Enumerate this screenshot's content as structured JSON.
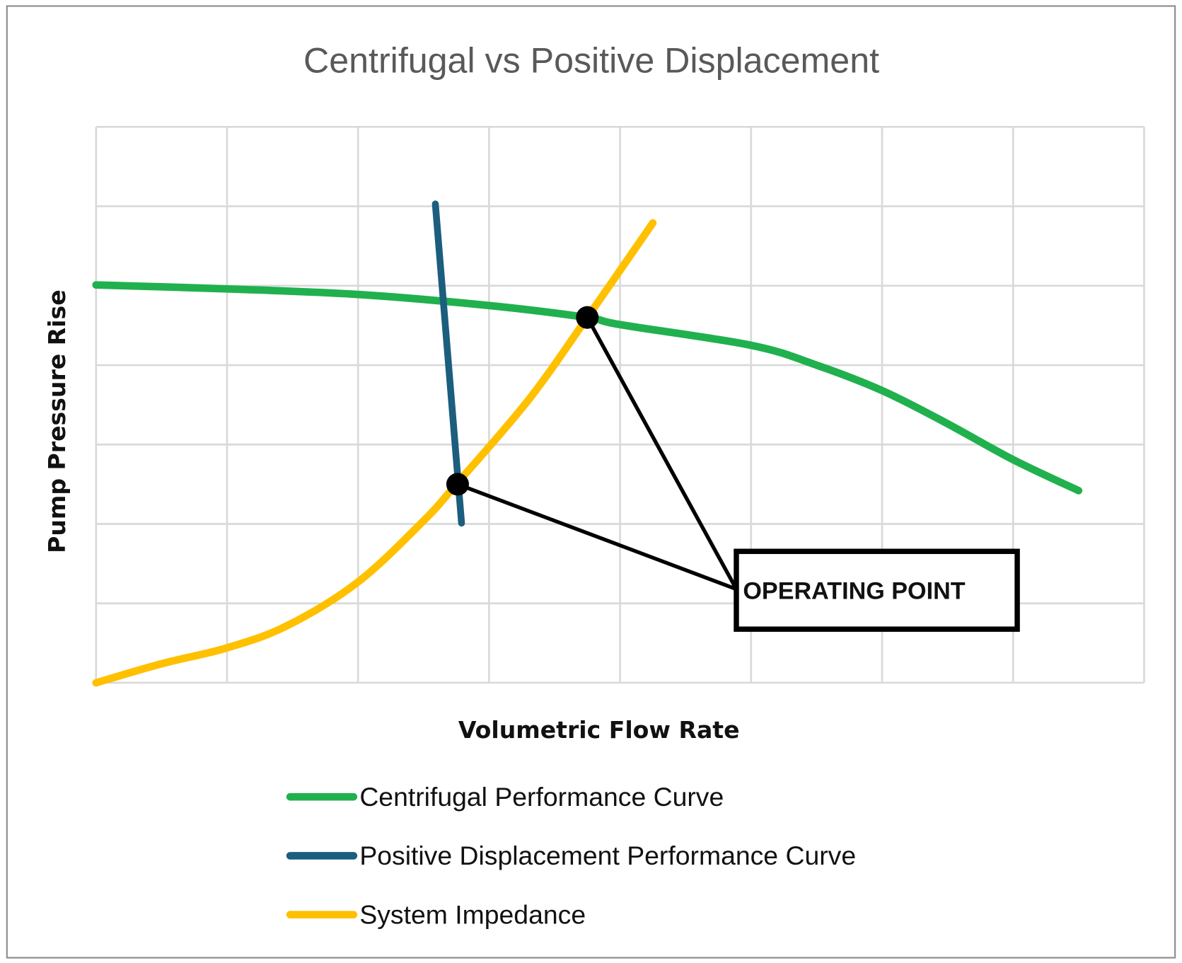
{
  "chart_data": {
    "type": "line",
    "title": "Centrifugal vs Positive Displacement",
    "xlabel": "Volumetric Flow Rate",
    "ylabel": "Pump Pressure Rise",
    "xlim": [
      0,
      8
    ],
    "ylim": [
      0,
      7
    ],
    "grid": true,
    "tick_labels": false,
    "legend_position": "bottom",
    "series": [
      {
        "name": "Centrifugal Performance Curve",
        "color": "#21b04e",
        "x": [
          0,
          1,
          2,
          3,
          3.75,
          4,
          5,
          5.5,
          6,
          6.48,
          7,
          7.5
        ],
        "y": [
          5.01,
          4.96,
          4.89,
          4.75,
          4.6,
          4.51,
          4.25,
          4.0,
          3.68,
          3.28,
          2.81,
          2.42
        ]
      },
      {
        "name": "Positive Displacement Performance Curve",
        "color": "#1b5e7e",
        "x": [
          2.59,
          2.79
        ],
        "y": [
          6.03,
          2.01
        ]
      },
      {
        "name": "System Impedance",
        "color": "#ffc000",
        "x": [
          0,
          0.5,
          1,
          1.46,
          2,
          2.5,
          2.75,
          3.3,
          3.75,
          4.25
        ],
        "y": [
          0,
          0.24,
          0.44,
          0.72,
          1.27,
          2.04,
          2.5,
          3.56,
          4.6,
          5.79
        ]
      }
    ],
    "annotations": [
      {
        "text": "OPERATING POINT",
        "points": [
          {
            "x": 2.76,
            "y": 2.5
          },
          {
            "x": 3.75,
            "y": 4.6
          }
        ]
      }
    ]
  }
}
